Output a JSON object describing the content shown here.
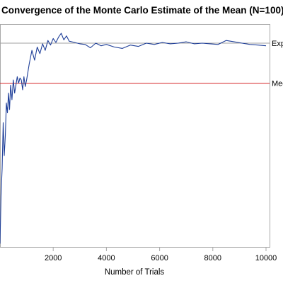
{
  "chart_data": {
    "type": "line",
    "title": "Convergence of the Monte Carlo Estimate of the Mean (N=100)",
    "xlabel": "Number of Trials",
    "ylabel": "",
    "xlim": [
      0,
      10000
    ],
    "x_ticks": [
      2000,
      4000,
      6000,
      8000,
      10000
    ],
    "x_tick_labels": [
      "2000",
      "4000",
      "6000",
      "8000",
      "10000"
    ],
    "grid": false,
    "series": [
      {
        "color": "#1f3f99",
        "x": [
          1,
          40,
          80,
          120,
          160,
          200,
          240,
          280,
          320,
          360,
          400,
          450,
          500,
          550,
          600,
          650,
          700,
          750,
          800,
          850,
          900,
          950,
          1000,
          1100,
          1200,
          1300,
          1400,
          1500,
          1600,
          1700,
          1800,
          1900,
          2000,
          2100,
          2200,
          2300,
          2400,
          2500,
          2600,
          2800,
          3000,
          3200,
          3400,
          3600,
          3800,
          4000,
          4300,
          4600,
          4900,
          5200,
          5500,
          5800,
          6100,
          6400,
          6700,
          7000,
          7300,
          7600,
          7900,
          8200,
          8500,
          8800,
          9100,
          9400,
          9700,
          10000
        ],
        "y": [
          6,
          80,
          120,
          190,
          140,
          170,
          220,
          205,
          235,
          210,
          247,
          225,
          255,
          235,
          248,
          260,
          250,
          258,
          255,
          240,
          260,
          245,
          255,
          280,
          300,
          285,
          305,
          295,
          310,
          300,
          315,
          308,
          318,
          312,
          320,
          326,
          316,
          322,
          314,
          312,
          310,
          309,
          304,
          311,
          307,
          309,
          305,
          303,
          308,
          306,
          311,
          309,
          312,
          310,
          311,
          313,
          310,
          311,
          310,
          309,
          315,
          313,
          311,
          309,
          308,
          307
        ]
      }
    ],
    "reference_lines": [
      {
        "label": "Exp",
        "y": 311,
        "color": "#a0a0a0"
      },
      {
        "label": "Mec",
        "y": 250,
        "color": "#d62728"
      }
    ]
  }
}
